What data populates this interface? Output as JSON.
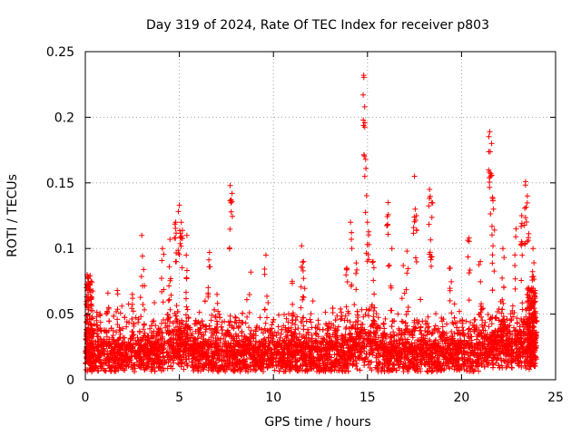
{
  "chart_data": {
    "type": "scatter",
    "title": "Day 319 of 2024, Rate Of TEC Index for receiver p803",
    "xlabel": "GPS time / hours",
    "ylabel": "ROTI / TECUs",
    "xlim": [
      0,
      25
    ],
    "ylim": [
      0,
      0.25
    ],
    "x_ticks": [
      "0",
      "5",
      "10",
      "15",
      "20",
      "25"
    ],
    "y_ticks": [
      "0",
      "0.05",
      "0.1",
      "0.15",
      "0.2",
      "0.25"
    ],
    "grid": true,
    "marker": "plus",
    "color": "#ff0000",
    "series": [
      {
        "name": "ROTI",
        "description": "dense band of points between roughly 0.005 and 0.06 TECU across 0-24 h, with spikes",
        "spikes": [
          {
            "x": 0.1,
            "y": 0.08
          },
          {
            "x": 0.3,
            "y": 0.075
          },
          {
            "x": 1.2,
            "y": 0.066
          },
          {
            "x": 1.7,
            "y": 0.068
          },
          {
            "x": 2.5,
            "y": 0.065
          },
          {
            "x": 3.0,
            "y": 0.11
          },
          {
            "x": 3.1,
            "y": 0.084
          },
          {
            "x": 4.1,
            "y": 0.1
          },
          {
            "x": 4.5,
            "y": 0.107
          },
          {
            "x": 4.8,
            "y": 0.12
          },
          {
            "x": 5.0,
            "y": 0.133
          },
          {
            "x": 5.1,
            "y": 0.12
          },
          {
            "x": 5.4,
            "y": 0.11
          },
          {
            "x": 6.6,
            "y": 0.097
          },
          {
            "x": 7.0,
            "y": 0.065
          },
          {
            "x": 7.7,
            "y": 0.148
          },
          {
            "x": 7.8,
            "y": 0.142
          },
          {
            "x": 8.8,
            "y": 0.082
          },
          {
            "x": 9.6,
            "y": 0.095
          },
          {
            "x": 11.0,
            "y": 0.075
          },
          {
            "x": 11.5,
            "y": 0.102
          },
          {
            "x": 11.6,
            "y": 0.09
          },
          {
            "x": 12.1,
            "y": 0.06
          },
          {
            "x": 13.9,
            "y": 0.085
          },
          {
            "x": 14.1,
            "y": 0.12
          },
          {
            "x": 14.4,
            "y": 0.089
          },
          {
            "x": 14.8,
            "y": 0.232
          },
          {
            "x": 14.85,
            "y": 0.208
          },
          {
            "x": 14.9,
            "y": 0.168
          },
          {
            "x": 15.0,
            "y": 0.12
          },
          {
            "x": 15.3,
            "y": 0.09
          },
          {
            "x": 16.1,
            "y": 0.135
          },
          {
            "x": 16.3,
            "y": 0.1
          },
          {
            "x": 16.9,
            "y": 0.087
          },
          {
            "x": 17.1,
            "y": 0.098
          },
          {
            "x": 17.5,
            "y": 0.155
          },
          {
            "x": 17.6,
            "y": 0.125
          },
          {
            "x": 18.3,
            "y": 0.145
          },
          {
            "x": 18.4,
            "y": 0.135
          },
          {
            "x": 19.4,
            "y": 0.085
          },
          {
            "x": 20.4,
            "y": 0.108
          },
          {
            "x": 21.0,
            "y": 0.09
          },
          {
            "x": 21.5,
            "y": 0.189
          },
          {
            "x": 21.6,
            "y": 0.18
          },
          {
            "x": 21.55,
            "y": 0.157
          },
          {
            "x": 21.7,
            "y": 0.13
          },
          {
            "x": 22.2,
            "y": 0.1
          },
          {
            "x": 22.9,
            "y": 0.115
          },
          {
            "x": 23.2,
            "y": 0.125
          },
          {
            "x": 23.4,
            "y": 0.151
          },
          {
            "x": 23.5,
            "y": 0.14
          },
          {
            "x": 23.8,
            "y": 0.1
          }
        ]
      }
    ]
  }
}
